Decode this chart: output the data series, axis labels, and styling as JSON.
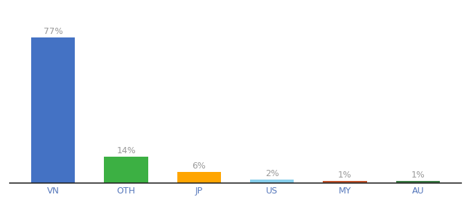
{
  "categories": [
    "VN",
    "OTH",
    "JP",
    "US",
    "MY",
    "AU"
  ],
  "values": [
    77,
    14,
    6,
    2,
    1,
    1
  ],
  "bar_colors": [
    "#4472C4",
    "#3CB043",
    "#FFA500",
    "#87CEEB",
    "#C0522A",
    "#3A7D44"
  ],
  "labels": [
    "77%",
    "14%",
    "6%",
    "2%",
    "1%",
    "1%"
  ],
  "label_color": "#999999",
  "tick_color": "#5577bb",
  "background_color": "#ffffff",
  "ylim": [
    0,
    88
  ],
  "bar_width": 0.6,
  "label_fontsize": 9,
  "tick_fontsize": 9
}
